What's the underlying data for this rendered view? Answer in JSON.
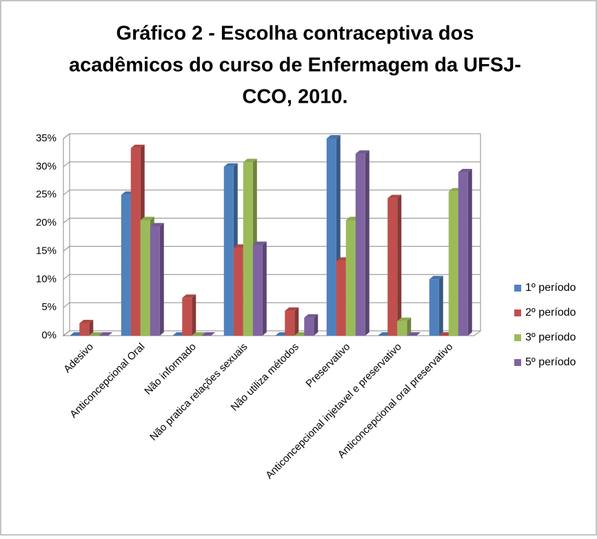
{
  "chart_data": {
    "type": "bar3d",
    "title": [
      "Gráfico 2 - Escolha contraceptiva dos",
      "acadêmicos do curso de Enfermagem da UFSJ-",
      "CCO, 2010."
    ],
    "categories": [
      "Adesivo",
      "Anticoncepcional Oral",
      "Não informado",
      "Não pratica relações sexuais",
      "Não utiliza métodos",
      "Preservativo",
      "Anticoncepcional injetavel e preservativo",
      "Anticoncepcional oral preservativo"
    ],
    "series": [
      {
        "name": "1º período",
        "color": "#4f81bd",
        "values": [
          0,
          25,
          0,
          30,
          0,
          35,
          0,
          10
        ]
      },
      {
        "name": "2º período",
        "color": "#c0504d",
        "values": [
          2.2,
          33.3,
          6.7,
          15.6,
          4.4,
          13.3,
          24.4,
          0
        ]
      },
      {
        "name": "3º período",
        "color": "#9bbb59",
        "values": [
          0,
          20.5,
          0,
          30.8,
          0,
          20.5,
          2.6,
          25.6
        ]
      },
      {
        "name": "5º período",
        "color": "#8064a2",
        "values": [
          0,
          19.4,
          0,
          16.1,
          3.2,
          32.3,
          0,
          29
        ]
      }
    ],
    "ylim": [
      0,
      35
    ],
    "yticks": [
      {
        "value": 0,
        "label": "0%"
      },
      {
        "value": 5,
        "label": "5%"
      },
      {
        "value": 10,
        "label": "10%"
      },
      {
        "value": 15,
        "label": "15%"
      },
      {
        "value": 20,
        "label": "20%"
      },
      {
        "value": 25,
        "label": "25%"
      },
      {
        "value": 30,
        "label": "30%"
      },
      {
        "value": 35,
        "label": "35%"
      }
    ],
    "grid": true,
    "legend": "right"
  }
}
